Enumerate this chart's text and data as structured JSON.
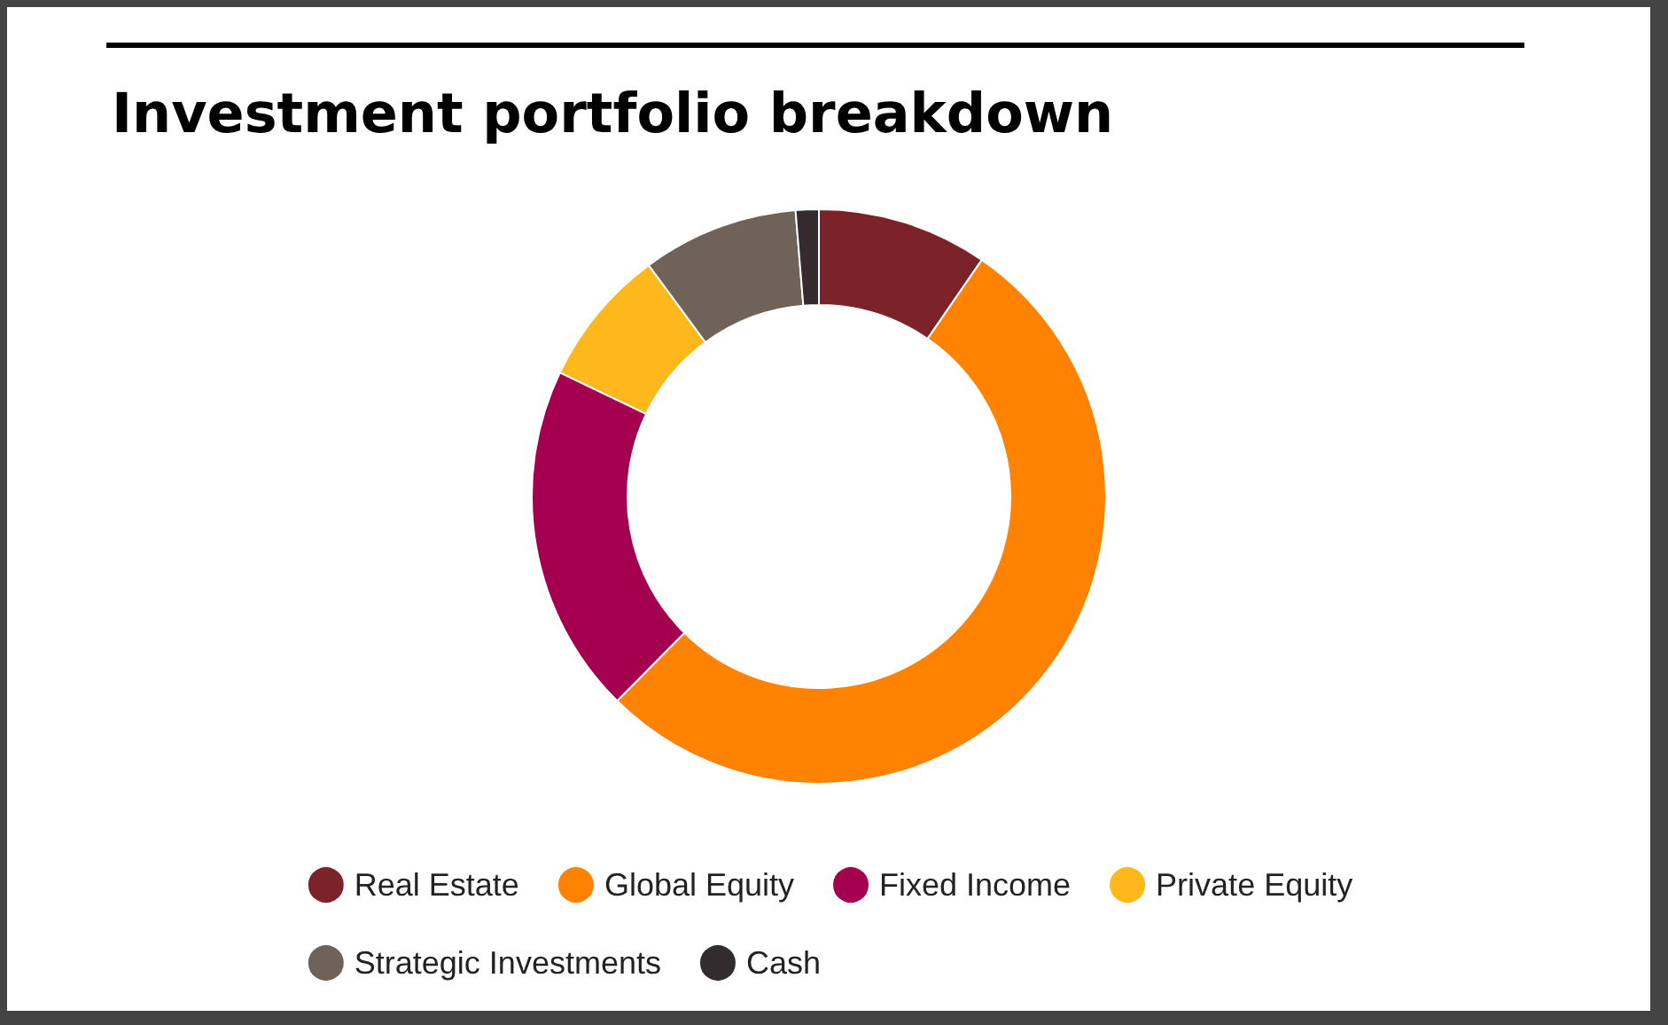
{
  "chart_data": {
    "type": "donut",
    "title": "Investment portfolio breakdown",
    "categories": [
      "Real Estate",
      "Global Equity",
      "Fixed Income",
      "Private Equity",
      "Strategic Investments",
      "Cash"
    ],
    "values": [
      9.6,
      52.8,
      19.7,
      7.8,
      8.8,
      1.3
    ],
    "colors": [
      "#7b2328",
      "#ff8200",
      "#a4004f",
      "#ffb81c",
      "#6e6259",
      "#332b2e"
    ],
    "legend": "bottom"
  }
}
